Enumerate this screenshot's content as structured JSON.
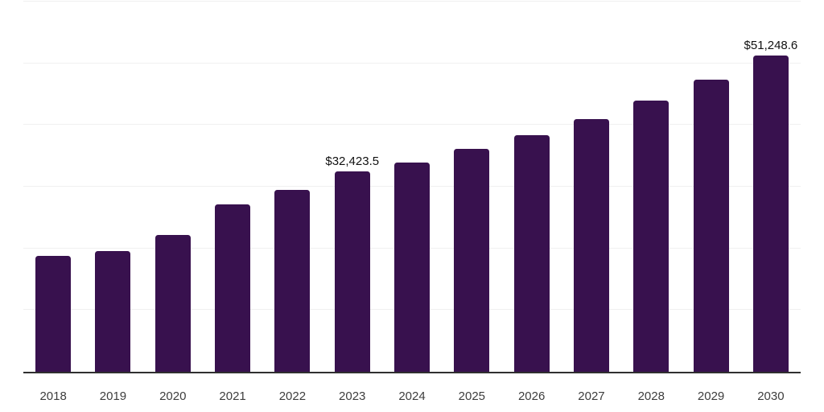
{
  "chart_data": {
    "type": "bar",
    "title": "",
    "xlabel": "",
    "ylabel": "",
    "categories": [
      "2018",
      "2019",
      "2020",
      "2021",
      "2022",
      "2023",
      "2024",
      "2025",
      "2026",
      "2027",
      "2028",
      "2029",
      "2030"
    ],
    "values": [
      18800,
      19600,
      22200,
      27100,
      29500,
      32423.5,
      33900,
      36100,
      38300,
      41000,
      44000,
      47300,
      51248.6
    ],
    "data_labels": {
      "2023": "$32,423.5",
      "2030": "$51,248.6"
    },
    "ylim": [
      0,
      60000
    ],
    "gridline_step": 10000,
    "grid": "horizontal",
    "legend_position": "none",
    "y_axis_tick_labels": "none",
    "colors": {
      "bar": "#38114e",
      "gridline": "#f0f0f0",
      "axis_line": "#303030",
      "x_tick_label": "#3d3d3d",
      "data_label": "#111111",
      "background": "#ffffff"
    }
  }
}
